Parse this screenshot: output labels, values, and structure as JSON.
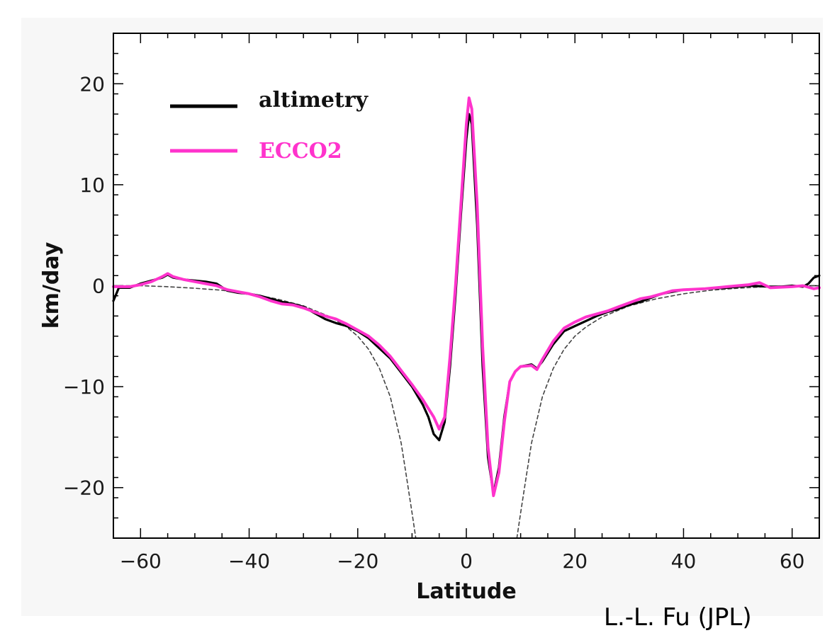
{
  "credit": "L.-L. Fu (JPL)",
  "colors": {
    "altimetry": "#000000",
    "ECCO2": "#ff33cc",
    "theory": "#444444",
    "plot_bg": "#ffffff",
    "panel_bg": "#f7f7f7"
  },
  "chart_data": {
    "type": "line",
    "title": "",
    "xlabel": "Latitude",
    "ylabel": "km/day",
    "xlim": [
      -65,
      65
    ],
    "ylim": [
      -25,
      25
    ],
    "xticks": [
      -60,
      -40,
      -20,
      0,
      20,
      40,
      60
    ],
    "yticks": [
      -20,
      -10,
      0,
      10,
      20
    ],
    "xtick_labels": [
      "−60",
      "−40",
      "−20",
      "0",
      "20",
      "40",
      "60"
    ],
    "ytick_labels": [
      "−20",
      "−10",
      "0",
      "10",
      "20"
    ],
    "grid": false,
    "legend_position": "top-left",
    "legend": [
      "altimetry",
      "ECCO2"
    ],
    "series": [
      {
        "name": "altimetry",
        "style": "solid",
        "color": "#000000",
        "points": [
          [
            -65,
            -1.5
          ],
          [
            -64,
            -0.2
          ],
          [
            -62,
            -0.2
          ],
          [
            -60,
            0.2
          ],
          [
            -58,
            0.5
          ],
          [
            -56,
            0.8
          ],
          [
            -55,
            1.1
          ],
          [
            -54,
            0.8
          ],
          [
            -52,
            0.6
          ],
          [
            -50,
            0.5
          ],
          [
            -48,
            0.4
          ],
          [
            -46,
            0.2
          ],
          [
            -44,
            -0.5
          ],
          [
            -42,
            -0.7
          ],
          [
            -40,
            -0.8
          ],
          [
            -38,
            -1.0
          ],
          [
            -36,
            -1.3
          ],
          [
            -34,
            -1.6
          ],
          [
            -32,
            -1.8
          ],
          [
            -30,
            -2.1
          ],
          [
            -28,
            -2.7
          ],
          [
            -26,
            -3.3
          ],
          [
            -24,
            -3.7
          ],
          [
            -22,
            -4.0
          ],
          [
            -20,
            -4.5
          ],
          [
            -18,
            -5.2
          ],
          [
            -16,
            -6.2
          ],
          [
            -14,
            -7.2
          ],
          [
            -12,
            -8.6
          ],
          [
            -10,
            -10.0
          ],
          [
            -8,
            -11.8
          ],
          [
            -7,
            -13.0
          ],
          [
            -6,
            -14.7
          ],
          [
            -5,
            -15.3
          ],
          [
            -4,
            -13.5
          ],
          [
            -3,
            -8.0
          ],
          [
            -2,
            -1.0
          ],
          [
            -1,
            7.0
          ],
          [
            0,
            14.5
          ],
          [
            0.5,
            17.0
          ],
          [
            1,
            16.0
          ],
          [
            2,
            6.0
          ],
          [
            3,
            -8.0
          ],
          [
            4,
            -17.0
          ],
          [
            5,
            -20.6
          ],
          [
            6,
            -18.0
          ],
          [
            7,
            -13.0
          ],
          [
            8,
            -9.5
          ],
          [
            9,
            -8.5
          ],
          [
            10,
            -8.0
          ],
          [
            12,
            -7.8
          ],
          [
            13,
            -8.2
          ],
          [
            14,
            -7.5
          ],
          [
            16,
            -5.8
          ],
          [
            18,
            -4.5
          ],
          [
            20,
            -4.0
          ],
          [
            22,
            -3.5
          ],
          [
            24,
            -3.0
          ],
          [
            26,
            -2.6
          ],
          [
            28,
            -2.3
          ],
          [
            30,
            -1.9
          ],
          [
            32,
            -1.6
          ],
          [
            34,
            -1.2
          ],
          [
            36,
            -0.8
          ],
          [
            38,
            -0.6
          ],
          [
            40,
            -0.4
          ],
          [
            44,
            -0.3
          ],
          [
            48,
            -0.2
          ],
          [
            52,
            0.0
          ],
          [
            56,
            -0.1
          ],
          [
            58,
            -0.1
          ],
          [
            60,
            0.0
          ],
          [
            62,
            -0.1
          ],
          [
            63,
            0.2
          ],
          [
            64,
            0.8
          ],
          [
            65,
            1.0
          ]
        ]
      },
      {
        "name": "ECCO2",
        "style": "solid",
        "color": "#ff33cc",
        "points": [
          [
            -65,
            -0.1
          ],
          [
            -62,
            -0.1
          ],
          [
            -60,
            0.1
          ],
          [
            -58,
            0.4
          ],
          [
            -56,
            0.9
          ],
          [
            -55,
            1.2
          ],
          [
            -54,
            0.9
          ],
          [
            -52,
            0.6
          ],
          [
            -50,
            0.4
          ],
          [
            -48,
            0.2
          ],
          [
            -46,
            0.0
          ],
          [
            -44,
            -0.4
          ],
          [
            -42,
            -0.6
          ],
          [
            -40,
            -0.8
          ],
          [
            -38,
            -1.1
          ],
          [
            -36,
            -1.5
          ],
          [
            -34,
            -1.8
          ],
          [
            -32,
            -1.9
          ],
          [
            -30,
            -2.2
          ],
          [
            -28,
            -2.6
          ],
          [
            -26,
            -3.0
          ],
          [
            -24,
            -3.3
          ],
          [
            -22,
            -3.8
          ],
          [
            -20,
            -4.4
          ],
          [
            -18,
            -5.0
          ],
          [
            -16,
            -5.9
          ],
          [
            -14,
            -7.0
          ],
          [
            -12,
            -8.4
          ],
          [
            -10,
            -9.8
          ],
          [
            -8,
            -11.3
          ],
          [
            -6,
            -13.0
          ],
          [
            -5,
            -14.2
          ],
          [
            -4,
            -13.0
          ],
          [
            -3,
            -7.0
          ],
          [
            -2,
            0.0
          ],
          [
            -1,
            8.0
          ],
          [
            0,
            16.0
          ],
          [
            0.5,
            18.6
          ],
          [
            1,
            17.5
          ],
          [
            2,
            8.0
          ],
          [
            3,
            -6.0
          ],
          [
            4,
            -16.0
          ],
          [
            5,
            -20.8
          ],
          [
            6,
            -18.5
          ],
          [
            7,
            -13.5
          ],
          [
            8,
            -9.5
          ],
          [
            9,
            -8.5
          ],
          [
            10,
            -8.0
          ],
          [
            12,
            -7.9
          ],
          [
            13,
            -8.3
          ],
          [
            14,
            -7.3
          ],
          [
            16,
            -5.5
          ],
          [
            18,
            -4.2
          ],
          [
            20,
            -3.6
          ],
          [
            22,
            -3.1
          ],
          [
            24,
            -2.8
          ],
          [
            26,
            -2.5
          ],
          [
            28,
            -2.1
          ],
          [
            30,
            -1.7
          ],
          [
            32,
            -1.3
          ],
          [
            34,
            -1.1
          ],
          [
            36,
            -0.8
          ],
          [
            38,
            -0.5
          ],
          [
            40,
            -0.4
          ],
          [
            44,
            -0.3
          ],
          [
            48,
            -0.1
          ],
          [
            52,
            0.1
          ],
          [
            54,
            0.3
          ],
          [
            56,
            -0.2
          ],
          [
            60,
            -0.1
          ],
          [
            62,
            0.0
          ],
          [
            64,
            -0.3
          ],
          [
            65,
            -0.2
          ]
        ]
      },
      {
        "name": "",
        "style": "dashed",
        "color": "#444444",
        "points": [
          [
            -65,
            0.0
          ],
          [
            -60,
            0.0
          ],
          [
            -55,
            -0.1
          ],
          [
            -50,
            -0.25
          ],
          [
            -45,
            -0.45
          ],
          [
            -40,
            -0.8
          ],
          [
            -35,
            -1.3
          ],
          [
            -30,
            -2.0
          ],
          [
            -25,
            -3.1
          ],
          [
            -22,
            -4.1
          ],
          [
            -20,
            -5.0
          ],
          [
            -18,
            -6.3
          ],
          [
            -16,
            -8.2
          ],
          [
            -14,
            -11.0
          ],
          [
            -12,
            -15.6
          ],
          [
            -11,
            -19.0
          ],
          [
            -10,
            -22.5
          ],
          [
            -9.3,
            -25.0
          ]
        ]
      },
      {
        "name": "",
        "style": "dashed",
        "color": "#444444",
        "points": [
          [
            9.3,
            -25.0
          ],
          [
            10,
            -22.5
          ],
          [
            11,
            -19.0
          ],
          [
            12,
            -15.6
          ],
          [
            14,
            -11.0
          ],
          [
            16,
            -8.2
          ],
          [
            18,
            -6.3
          ],
          [
            20,
            -5.0
          ],
          [
            22,
            -4.1
          ],
          [
            25,
            -3.1
          ],
          [
            30,
            -2.0
          ],
          [
            35,
            -1.3
          ],
          [
            40,
            -0.8
          ],
          [
            45,
            -0.45
          ],
          [
            50,
            -0.25
          ],
          [
            55,
            -0.1
          ],
          [
            60,
            0.0
          ],
          [
            65,
            0.0
          ]
        ]
      }
    ]
  }
}
